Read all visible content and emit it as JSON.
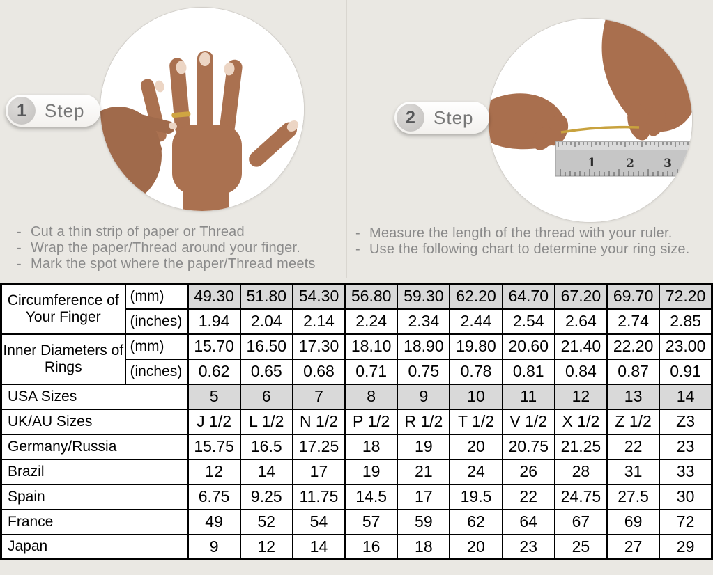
{
  "page": {
    "background": "#eae8e3"
  },
  "steps": [
    {
      "badge_number": "1",
      "badge_label": "Step",
      "image": "hand-with-ring-photo",
      "instructions": [
        "Cut a thin strip of paper or Thread",
        "Wrap the paper/Thread around your finger.",
        "Mark the spot where the paper/Thread meets"
      ]
    },
    {
      "badge_number": "2",
      "badge_label": "Step",
      "image": "measuring-thread-with-ruler-photo",
      "instructions": [
        "Measure the length of the thread with your ruler.",
        "Use the following chart to determine your ring size."
      ]
    }
  ],
  "chart_data": {
    "type": "table",
    "columns": 10,
    "groups": [
      {
        "label": "Circumference of Your Finger",
        "rows": [
          {
            "unit": "(mm)",
            "shaded": true,
            "values": [
              "49.30",
              "51.80",
              "54.30",
              "56.80",
              "59.30",
              "62.20",
              "64.70",
              "67.20",
              "69.70",
              "72.20"
            ]
          },
          {
            "unit": "(inches)",
            "shaded": false,
            "values": [
              "1.94",
              "2.04",
              "2.14",
              "2.24",
              "2.34",
              "2.44",
              "2.54",
              "2.64",
              "2.74",
              "2.85"
            ]
          }
        ]
      },
      {
        "label": "Inner Diameters of Rings",
        "rows": [
          {
            "unit": "(mm)",
            "shaded": false,
            "values": [
              "15.70",
              "16.50",
              "17.30",
              "18.10",
              "18.90",
              "19.80",
              "20.60",
              "21.40",
              "22.20",
              "23.00"
            ]
          },
          {
            "unit": "(inches)",
            "shaded": false,
            "values": [
              "0.62",
              "0.65",
              "0.68",
              "0.71",
              "0.75",
              "0.78",
              "0.81",
              "0.84",
              "0.87",
              "0.91"
            ]
          }
        ]
      }
    ],
    "size_rows": [
      {
        "label": "USA Sizes",
        "shaded": true,
        "values": [
          "5",
          "6",
          "7",
          "8",
          "9",
          "10",
          "11",
          "12",
          "13",
          "14"
        ]
      },
      {
        "label": "UK/AU Sizes",
        "shaded": false,
        "values": [
          "J 1/2",
          "L 1/2",
          "N 1/2",
          "P 1/2",
          "R 1/2",
          "T 1/2",
          "V 1/2",
          "X 1/2",
          "Z 1/2",
          "Z3"
        ]
      },
      {
        "label": "Germany/Russia",
        "shaded": false,
        "values": [
          "15.75",
          "16.5",
          "17.25",
          "18",
          "19",
          "20",
          "20.75",
          "21.25",
          "22",
          "23"
        ]
      },
      {
        "label": "Brazil",
        "shaded": false,
        "values": [
          "12",
          "14",
          "17",
          "19",
          "21",
          "24",
          "26",
          "28",
          "31",
          "33"
        ]
      },
      {
        "label": "Spain",
        "shaded": false,
        "values": [
          "6.75",
          "9.25",
          "11.75",
          "14.5",
          "17",
          "19.5",
          "22",
          "24.75",
          "27.5",
          "30"
        ]
      },
      {
        "label": "France",
        "shaded": false,
        "values": [
          "49",
          "52",
          "54",
          "57",
          "59",
          "62",
          "64",
          "67",
          "69",
          "72"
        ]
      },
      {
        "label": "Japan",
        "shaded": false,
        "values": [
          "9",
          "12",
          "14",
          "16",
          "18",
          "20",
          "23",
          "25",
          "27",
          "29"
        ]
      }
    ],
    "colors": {
      "shaded_cell": "#d9d9d9",
      "border": "#000000",
      "cell_bg": "#ffffff"
    }
  }
}
